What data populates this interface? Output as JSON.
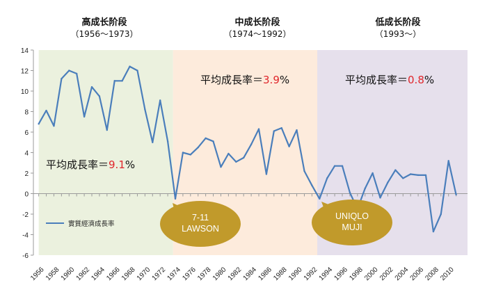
{
  "phases": [
    {
      "name": "高成长阶段",
      "years": "（1956～1973）",
      "avg_label": "平均成長率＝",
      "avg_value": "9.1",
      "avg_unit": "%",
      "color": "#ebf1de",
      "start": 1956,
      "end": 1973.7
    },
    {
      "name": "中成长阶段",
      "years": "（1974～1992）",
      "avg_label": "平均成長率＝",
      "avg_value": "3.9",
      "avg_unit": "%",
      "color": "#fdebdc",
      "start": 1973.7,
      "end": 1992.7
    },
    {
      "name": "低成长阶段",
      "years": "（1993～）",
      "avg_label": "平均成長率＝",
      "avg_value": "0.8",
      "avg_unit": "%",
      "color": "#e6e0ec",
      "start": 1992.7,
      "end": 2012.5
    }
  ],
  "callouts": [
    {
      "line1": "7-11",
      "line2": "LAWSON",
      "color": "#c19a2b",
      "year": 1974
    },
    {
      "line1": "UNIQLO",
      "line2": "MUJI",
      "color": "#c19a2b",
      "year": 1993
    }
  ],
  "chart_data": {
    "type": "line",
    "title": "",
    "xlabel": "",
    "ylabel": "",
    "legend": "實質經濟成長率",
    "line_color": "#4a7ebb",
    "ylim": [
      -6,
      14
    ],
    "yticks": [
      -6,
      -4,
      -2,
      0,
      2,
      4,
      6,
      8,
      10,
      12,
      14
    ],
    "xticks": [
      1956,
      1958,
      1960,
      1962,
      1964,
      1966,
      1968,
      1970,
      1972,
      1974,
      1976,
      1978,
      1980,
      1982,
      1984,
      1986,
      1988,
      1990,
      1992,
      1994,
      1996,
      1998,
      2000,
      2002,
      2004,
      2006,
      2008,
      2010
    ],
    "x": [
      1956,
      1957,
      1958,
      1959,
      1960,
      1961,
      1962,
      1963,
      1964,
      1965,
      1966,
      1967,
      1968,
      1969,
      1970,
      1971,
      1972,
      1973,
      1974,
      1975,
      1976,
      1977,
      1978,
      1979,
      1980,
      1981,
      1982,
      1983,
      1984,
      1985,
      1986,
      1987,
      1988,
      1989,
      1990,
      1991,
      1992,
      1993,
      1994,
      1995,
      1996,
      1997,
      1998,
      1999,
      2000,
      2001,
      2002,
      2003,
      2004,
      2005,
      2006,
      2007,
      2008,
      2009,
      2010,
      2011
    ],
    "values": [
      6.8,
      8.1,
      6.6,
      11.2,
      12.0,
      11.7,
      7.5,
      10.4,
      9.5,
      6.2,
      11.0,
      11.0,
      12.4,
      12.0,
      8.2,
      5.0,
      9.1,
      5.1,
      -0.5,
      4.0,
      3.8,
      4.5,
      5.4,
      5.1,
      2.6,
      3.9,
      3.1,
      3.5,
      4.8,
      6.3,
      1.9,
      6.1,
      6.4,
      4.6,
      6.2,
      2.2,
      0.8,
      -0.5,
      1.5,
      2.7,
      2.7,
      0.1,
      -1.5,
      0.5,
      2.0,
      -0.4,
      1.1,
      2.3,
      1.5,
      1.9,
      1.8,
      1.8,
      -3.7,
      -2.0,
      3.2,
      -0.1
    ]
  }
}
